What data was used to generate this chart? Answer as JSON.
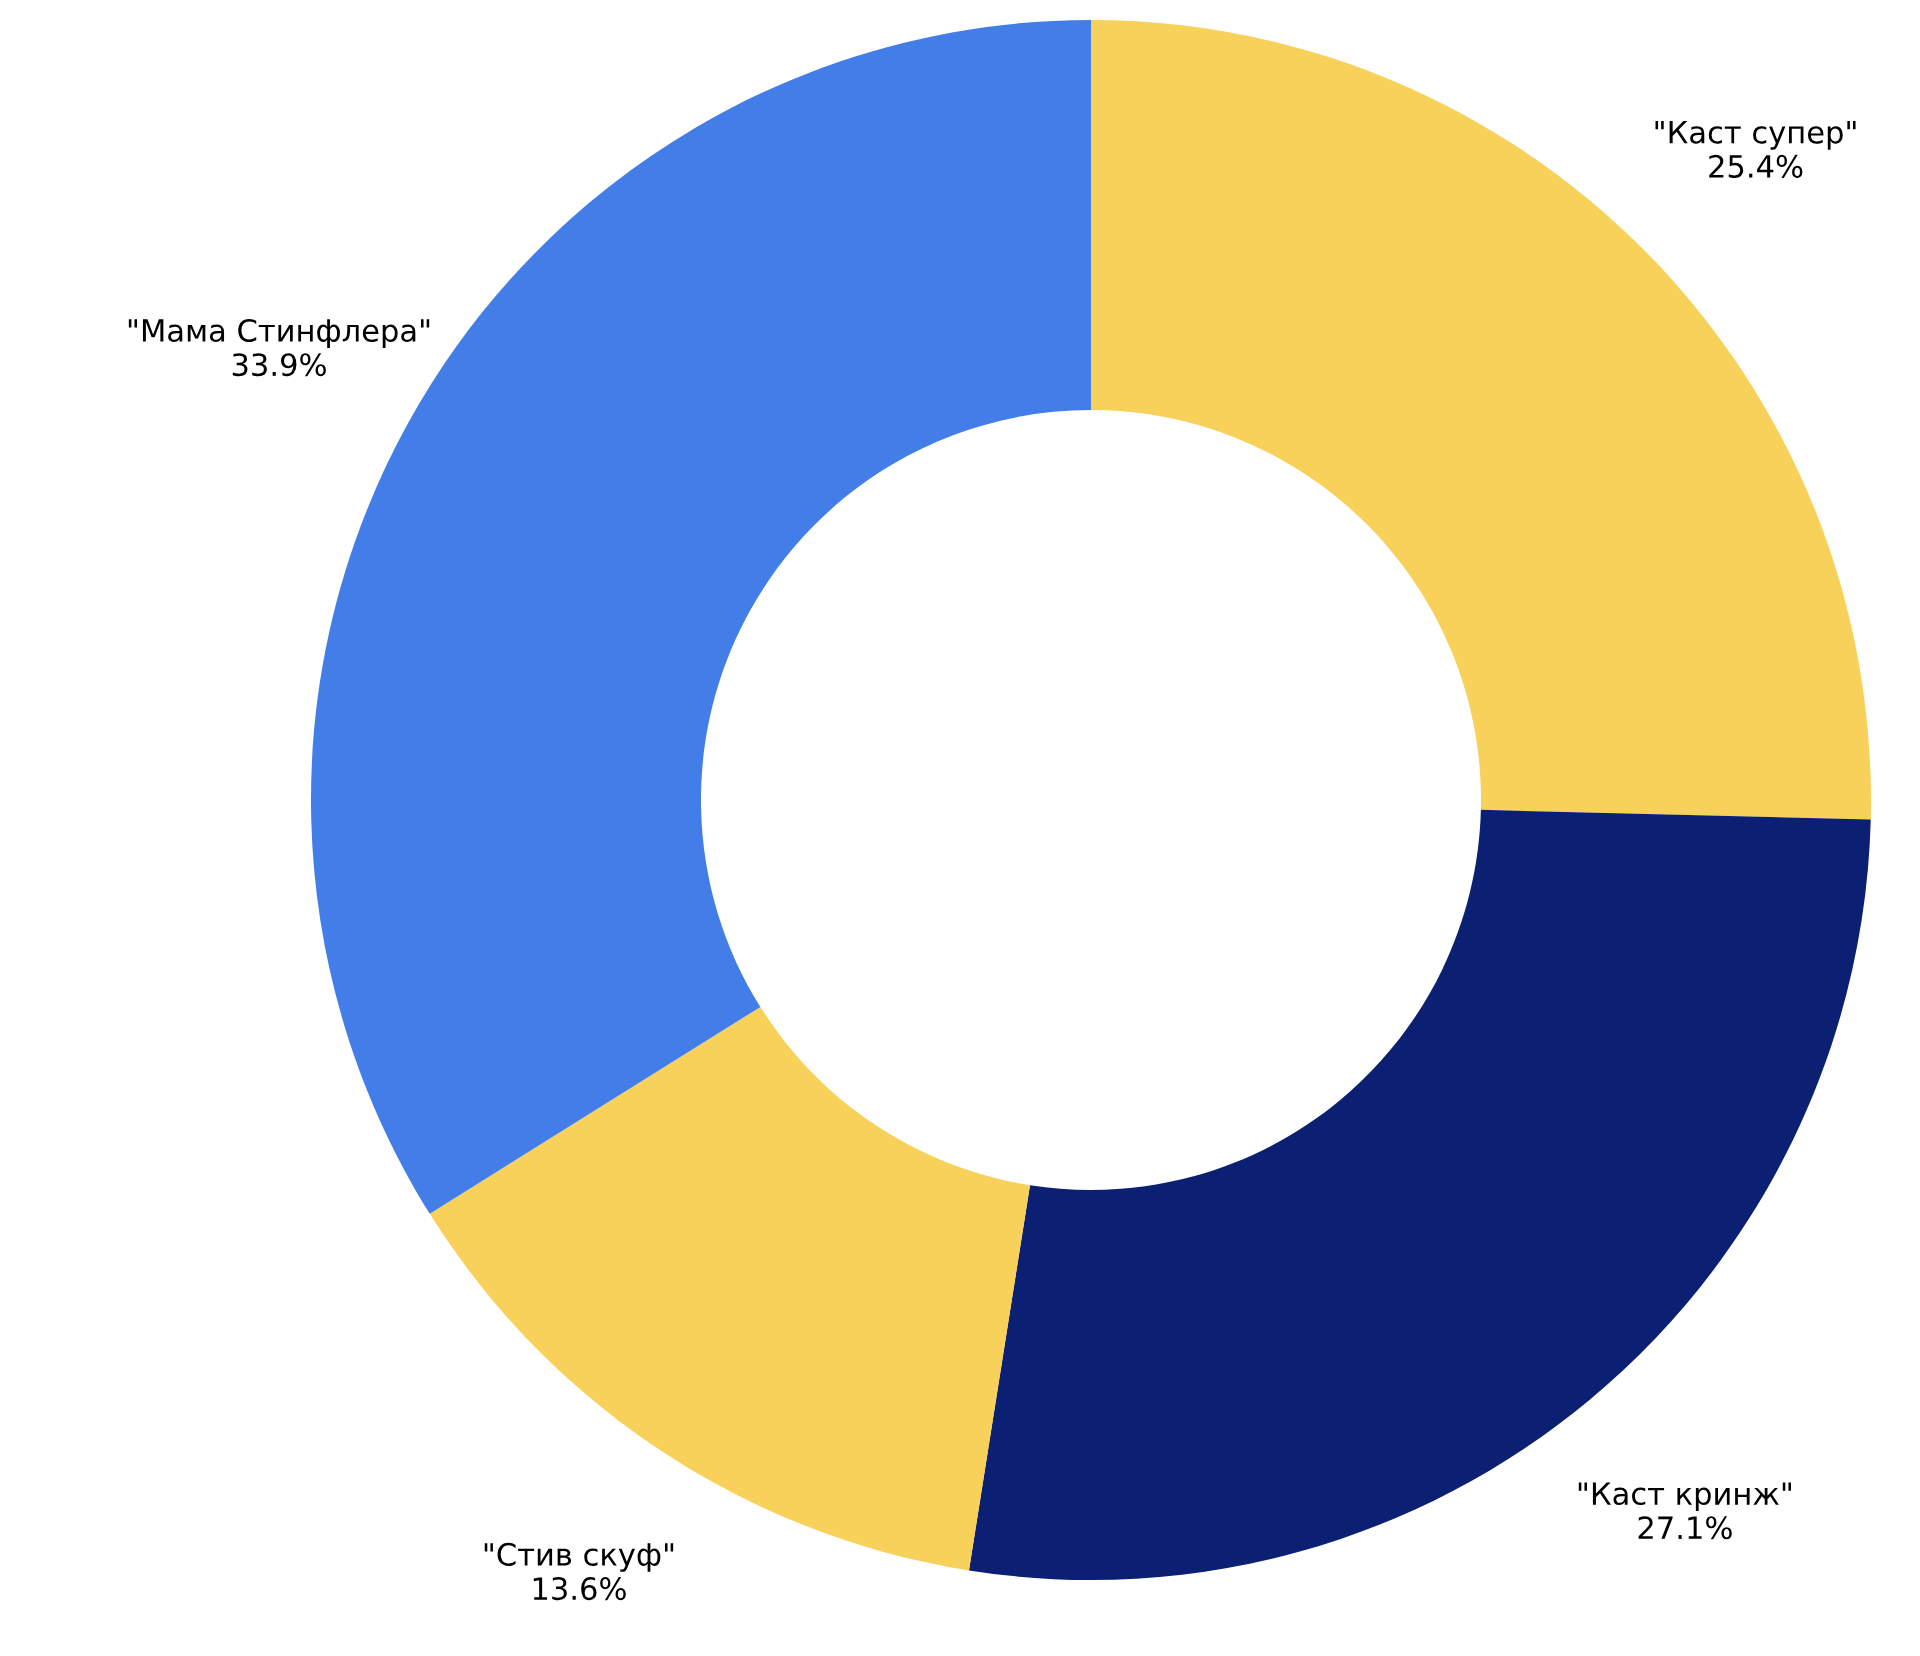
{
  "chart_data": {
    "type": "donut",
    "categories": [
      "\"Каст супер\"",
      "\"Каст кринж\"",
      "\"Стив скуф\"",
      "\"Мама Стинфлера\""
    ],
    "values": [
      25.4,
      27.1,
      13.6,
      33.9
    ],
    "value_labels": [
      "25.4%",
      "27.1%",
      "13.6%",
      "33.9%"
    ],
    "colors": [
      "#f8d15b",
      "#0b1f73",
      "#f8d15b",
      "#437ee8"
    ]
  }
}
